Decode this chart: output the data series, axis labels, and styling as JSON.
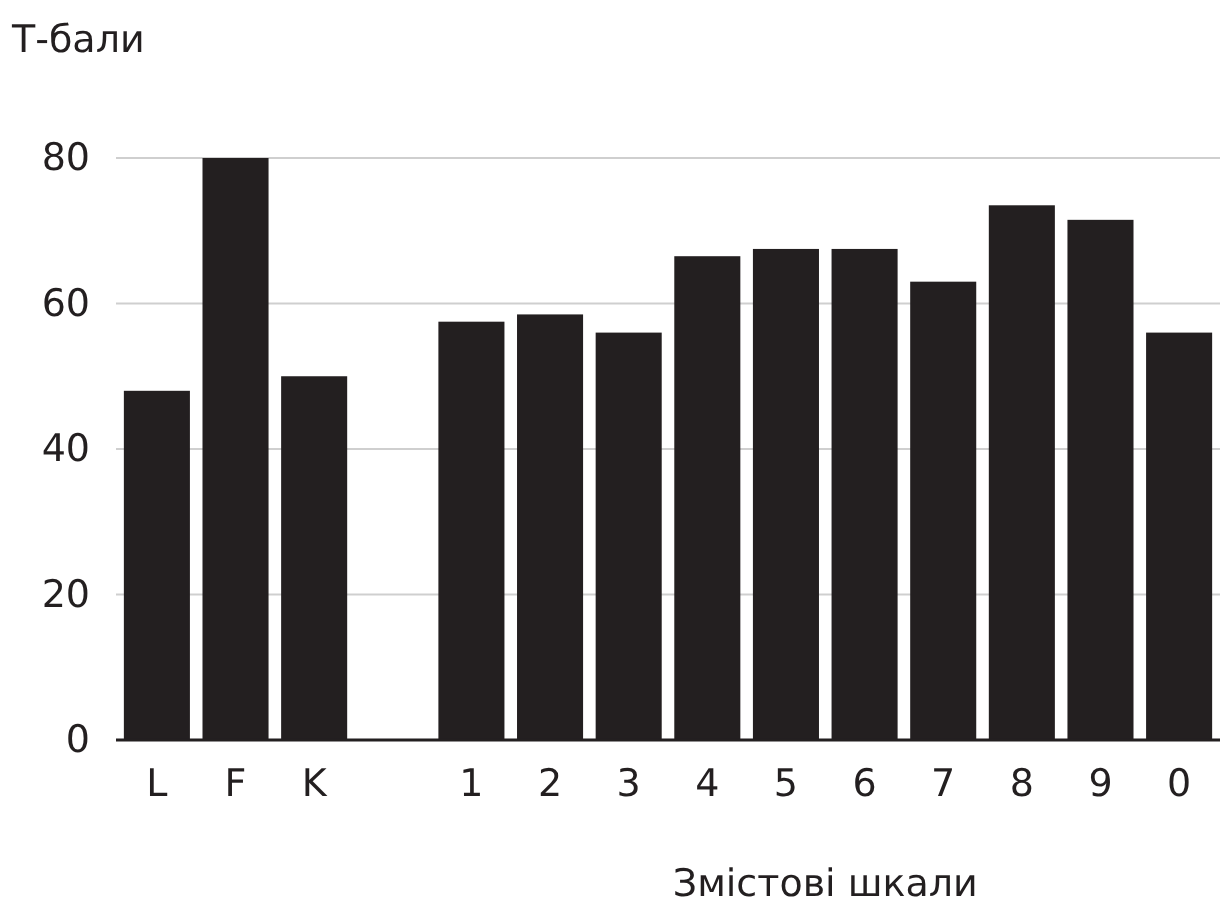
{
  "chart_data": {
    "type": "bar",
    "ylabel": "Т-бали",
    "categories": [
      "L",
      "F",
      "K",
      null,
      "1",
      "2",
      "3",
      "4",
      "5",
      "6",
      "7",
      "8",
      "9",
      "0"
    ],
    "values": [
      48,
      80,
      50,
      null,
      57.5,
      58.5,
      56,
      66.5,
      67.5,
      67.5,
      63,
      73.5,
      71.5,
      56
    ],
    "color": "#231f20",
    "ylim": [
      0,
      80
    ],
    "yticks": [
      0,
      20,
      40,
      60,
      80
    ],
    "grid": "y",
    "annotations": [
      "Змістові шкали"
    ]
  }
}
